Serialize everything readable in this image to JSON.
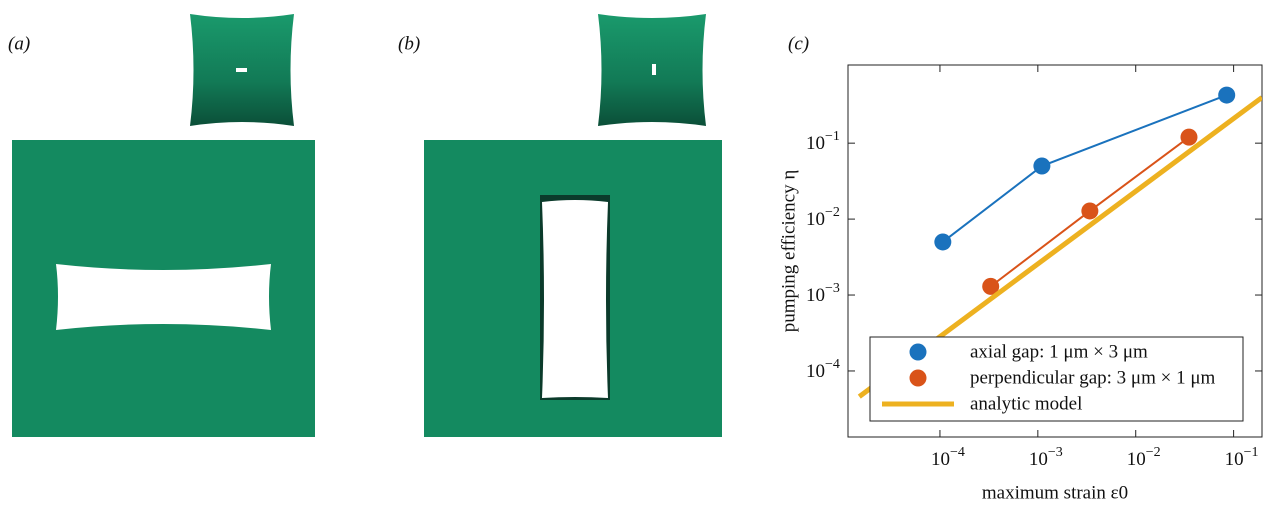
{
  "panels": [
    {
      "label": "(a)"
    },
    {
      "label": "(b)"
    }
  ],
  "chart_data": {
    "type": "line",
    "panel_label": "(c)",
    "x_label": "maximum strain ε0",
    "y_label": "pumping efficiency η",
    "log_x": true,
    "log_y": true,
    "xlim": [
      1.15e-05,
      0.195
    ],
    "ylim": [
      1.35e-05,
      1.07
    ],
    "xticks": [
      {
        "value": 0.0001,
        "label": "10−4"
      },
      {
        "value": 0.001,
        "label": "10−3"
      },
      {
        "value": 0.01,
        "label": "10−2"
      },
      {
        "value": 0.1,
        "label": "10−1"
      }
    ],
    "yticks": [
      {
        "value": 0.0001,
        "label": "10−4"
      },
      {
        "value": 0.001,
        "label": "10−3"
      },
      {
        "value": 0.01,
        "label": "10−2"
      },
      {
        "value": 0.1,
        "label": "10−1"
      }
    ],
    "legend": "lower right",
    "series": [
      {
        "name": "axial gap: 1 μm × 3 μm",
        "color": "#1a72bd",
        "markers": true,
        "x": [
          0.000107,
          0.0011,
          0.085
        ],
        "values": [
          0.005,
          0.05,
          0.43
        ]
      },
      {
        "name": "perpendicular gap: 3 μm × 1 μm",
        "color": "#d95319",
        "markers": true,
        "x": [
          0.00033,
          0.0034,
          0.035
        ],
        "values": [
          0.0013,
          0.0128,
          0.12
        ]
      },
      {
        "name": "analytic model",
        "color": "#edb120",
        "markers": false,
        "x": [
          1.5e-05,
          0.195
        ],
        "values": [
          4.6e-05,
          0.4
        ]
      }
    ]
  }
}
